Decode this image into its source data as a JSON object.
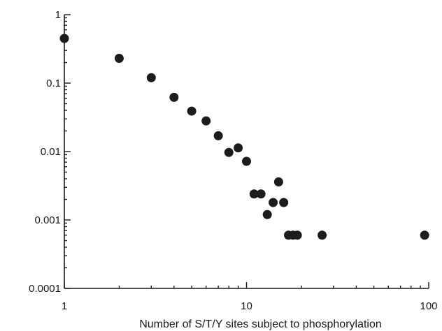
{
  "chart_data": {
    "type": "scatter",
    "title": "",
    "xlabel": "Number of S/T/Y sites subject to phosphorylation",
    "ylabel": "",
    "xscale": "log",
    "yscale": "log",
    "xlim": [
      1,
      100
    ],
    "ylim": [
      0.0001,
      1
    ],
    "grid": false,
    "legend": "none",
    "xticks": [
      {
        "value": 1,
        "label": "1"
      },
      {
        "value": 10,
        "label": "10"
      },
      {
        "value": 100,
        "label": "100"
      }
    ],
    "yticks": [
      {
        "value": 1,
        "label": "1"
      },
      {
        "value": 0.1,
        "label": "0.1"
      },
      {
        "value": 0.01,
        "label": "0.01"
      },
      {
        "value": 0.001,
        "label": "0.001"
      },
      {
        "value": 0.0001,
        "label": "0.0001"
      }
    ],
    "marker_color": "#1c1c1c",
    "series": [
      {
        "points": [
          {
            "x": 1,
            "y": 0.45
          },
          {
            "x": 2,
            "y": 0.23
          },
          {
            "x": 3,
            "y": 0.12
          },
          {
            "x": 4,
            "y": 0.062
          },
          {
            "x": 5,
            "y": 0.039
          },
          {
            "x": 6,
            "y": 0.028
          },
          {
            "x": 7,
            "y": 0.017
          },
          {
            "x": 8,
            "y": 0.0097
          },
          {
            "x": 9,
            "y": 0.0113
          },
          {
            "x": 10,
            "y": 0.0072
          },
          {
            "x": 11,
            "y": 0.0024
          },
          {
            "x": 12,
            "y": 0.0024
          },
          {
            "x": 13,
            "y": 0.0012
          },
          {
            "x": 14,
            "y": 0.0018
          },
          {
            "x": 15,
            "y": 0.0036
          },
          {
            "x": 16,
            "y": 0.0018
          },
          {
            "x": 17,
            "y": 0.0006
          },
          {
            "x": 18,
            "y": 0.0006
          },
          {
            "x": 19,
            "y": 0.0006
          },
          {
            "x": 26,
            "y": 0.0006
          },
          {
            "x": 95,
            "y": 0.0006
          }
        ]
      }
    ]
  }
}
